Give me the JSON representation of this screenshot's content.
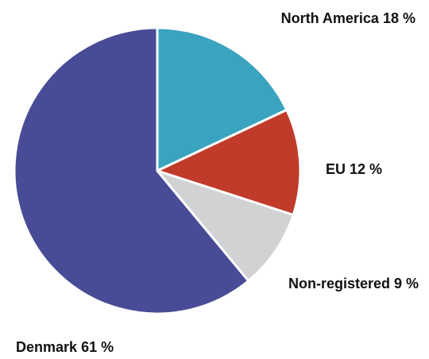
{
  "chart_data": {
    "type": "pie",
    "categories": [
      "North America",
      "EU",
      "Non-registered",
      "Denmark"
    ],
    "values": [
      18,
      12,
      9,
      61
    ],
    "value_labels": [
      "18 %",
      "12 %",
      "9 %",
      "61 %"
    ],
    "colors": [
      "#3aa3bf",
      "#c13b2a",
      "#d1d2d4",
      "#484c96"
    ]
  }
}
